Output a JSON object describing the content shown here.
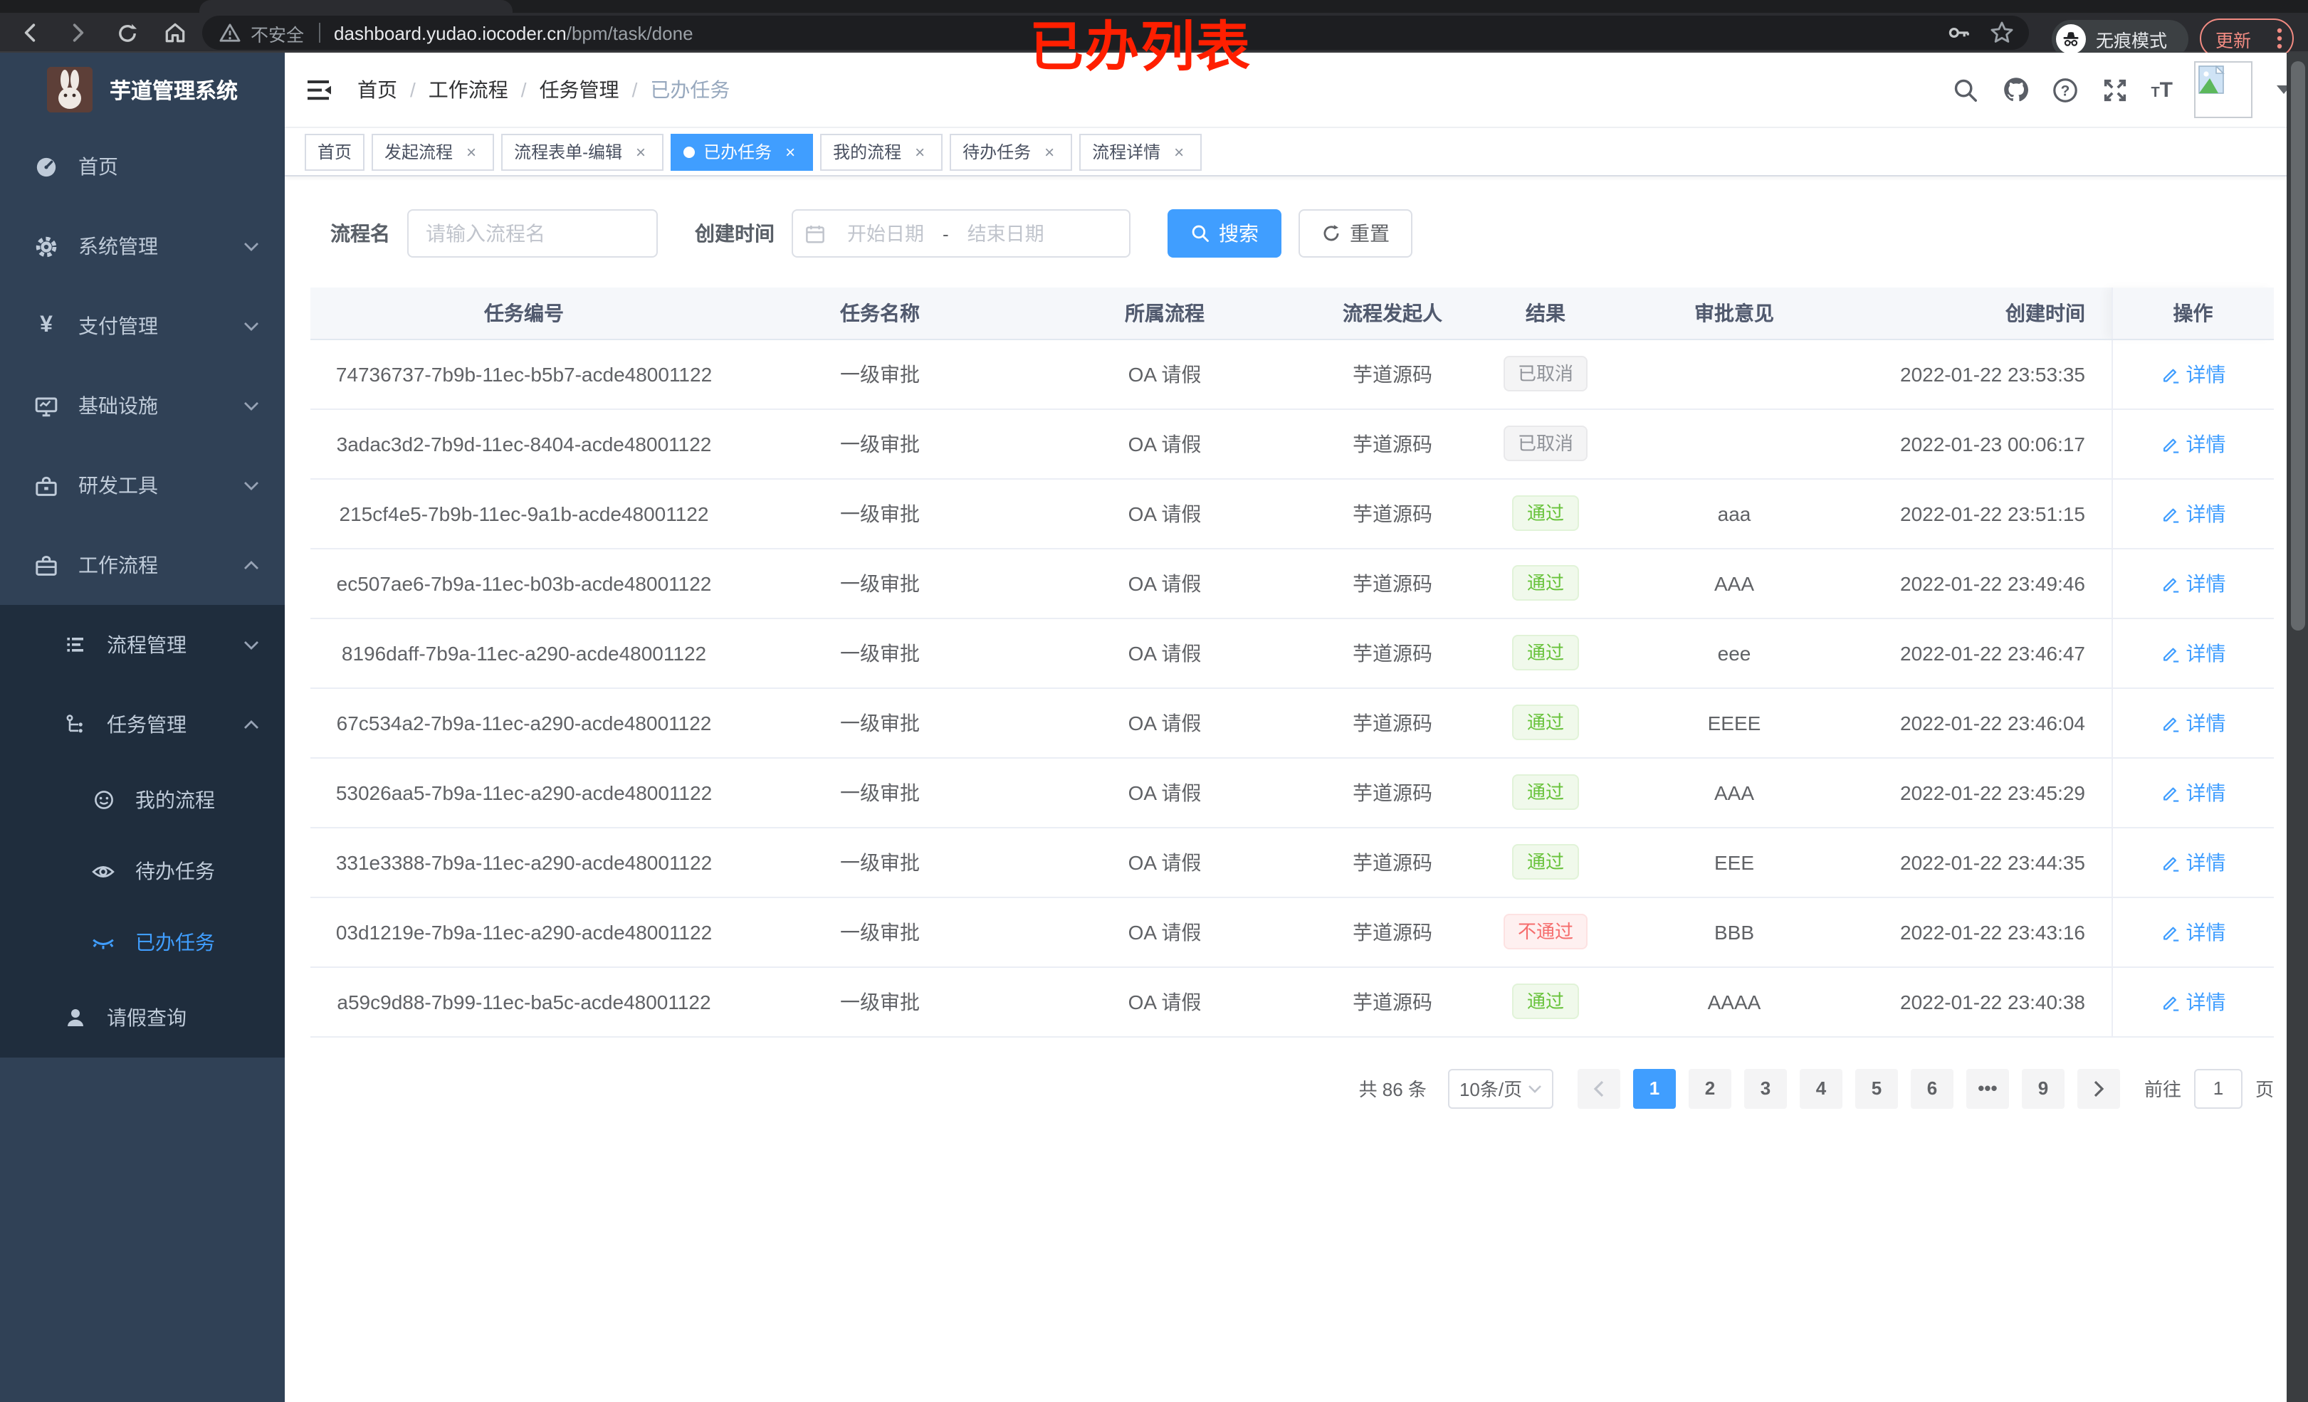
{
  "theme": {
    "accent": "#409eff",
    "sidebar_bg": "#304156",
    "submenu_bg": "#1f2d3d",
    "annotation_color": "#ff1f00"
  },
  "icons": {
    "close_glyph": "×",
    "ellipsis_glyph": "•••",
    "font_size_small": "T",
    "font_size_large": "T"
  },
  "browser": {
    "security_label": "不安全",
    "url_host": "dashboard.yudao.iocoder.cn",
    "url_path": "/bpm/task/done",
    "incognito_label": "无痕模式",
    "update_label": "更新"
  },
  "annotation": {
    "text": "已办列表"
  },
  "sidebar": {
    "title": "芋道管理系统",
    "items": [
      {
        "label": "首页"
      },
      {
        "label": "系统管理"
      },
      {
        "label": "支付管理"
      },
      {
        "label": "基础设施"
      },
      {
        "label": "研发工具"
      },
      {
        "label": "工作流程"
      }
    ],
    "sub_items": [
      {
        "label": "流程管理"
      },
      {
        "label": "任务管理"
      },
      {
        "label": "我的流程"
      },
      {
        "label": "待办任务"
      },
      {
        "label": "已办任务"
      },
      {
        "label": "请假查询"
      }
    ]
  },
  "navbar": {
    "breadcrumb": {
      "items": [
        "首页",
        "工作流程",
        "任务管理",
        "已办任务"
      ],
      "separator": "/"
    }
  },
  "tags": [
    {
      "label": "首页"
    },
    {
      "label": "发起流程"
    },
    {
      "label": "流程表单-编辑"
    },
    {
      "label": "已办任务"
    },
    {
      "label": "我的流程"
    },
    {
      "label": "待办任务"
    },
    {
      "label": "流程详情"
    }
  ],
  "filters": {
    "name_label": "流程名",
    "name_placeholder": "请输入流程名",
    "time_label": "创建时间",
    "start_placeholder": "开始日期",
    "range_separator": "-",
    "end_placeholder": "结束日期",
    "search_label": "搜索",
    "reset_label": "重置"
  },
  "table": {
    "columns": [
      "任务编号",
      "任务名称",
      "所属流程",
      "流程发起人",
      "结果",
      "审批意见",
      "创建时间",
      "操作"
    ],
    "action_label": "详情",
    "result_colors": {
      "success": "#67c23a",
      "info": "#909399",
      "danger": "#f56c6c"
    },
    "rows": [
      {
        "task_id": "74736737-7b9b-11ec-b5b7-acde48001122",
        "task_name": "一级审批",
        "process": "OA 请假",
        "starter": "芋道源码",
        "result": "已取消",
        "result_type": "info",
        "comment": "",
        "created": "2022-01-22 23:53:35"
      },
      {
        "task_id": "3adac3d2-7b9d-11ec-8404-acde48001122",
        "task_name": "一级审批",
        "process": "OA 请假",
        "starter": "芋道源码",
        "result": "已取消",
        "result_type": "info",
        "comment": "",
        "created": "2022-01-23 00:06:17"
      },
      {
        "task_id": "215cf4e5-7b9b-11ec-9a1b-acde48001122",
        "task_name": "一级审批",
        "process": "OA 请假",
        "starter": "芋道源码",
        "result": "通过",
        "result_type": "success",
        "comment": "aaa",
        "created": "2022-01-22 23:51:15"
      },
      {
        "task_id": "ec507ae6-7b9a-11ec-b03b-acde48001122",
        "task_name": "一级审批",
        "process": "OA 请假",
        "starter": "芋道源码",
        "result": "通过",
        "result_type": "success",
        "comment": "AAA",
        "created": "2022-01-22 23:49:46"
      },
      {
        "task_id": "8196daff-7b9a-11ec-a290-acde48001122",
        "task_name": "一级审批",
        "process": "OA 请假",
        "starter": "芋道源码",
        "result": "通过",
        "result_type": "success",
        "comment": "eee",
        "created": "2022-01-22 23:46:47"
      },
      {
        "task_id": "67c534a2-7b9a-11ec-a290-acde48001122",
        "task_name": "一级审批",
        "process": "OA 请假",
        "starter": "芋道源码",
        "result": "通过",
        "result_type": "success",
        "comment": "EEEE",
        "created": "2022-01-22 23:46:04"
      },
      {
        "task_id": "53026aa5-7b9a-11ec-a290-acde48001122",
        "task_name": "一级审批",
        "process": "OA 请假",
        "starter": "芋道源码",
        "result": "通过",
        "result_type": "success",
        "comment": "AAA",
        "created": "2022-01-22 23:45:29"
      },
      {
        "task_id": "331e3388-7b9a-11ec-a290-acde48001122",
        "task_name": "一级审批",
        "process": "OA 请假",
        "starter": "芋道源码",
        "result": "通过",
        "result_type": "success",
        "comment": "EEE",
        "created": "2022-01-22 23:44:35"
      },
      {
        "task_id": "03d1219e-7b9a-11ec-a290-acde48001122",
        "task_name": "一级审批",
        "process": "OA 请假",
        "starter": "芋道源码",
        "result": "不通过",
        "result_type": "danger",
        "comment": "BBB",
        "created": "2022-01-22 23:43:16"
      },
      {
        "task_id": "a59c9d88-7b99-11ec-ba5c-acde48001122",
        "task_name": "一级审批",
        "process": "OA 请假",
        "starter": "芋道源码",
        "result": "通过",
        "result_type": "success",
        "comment": "AAAA",
        "created": "2022-01-22 23:40:38"
      }
    ]
  },
  "pagination": {
    "total": "共 86 条",
    "page_size": "10条/页",
    "pages": [
      "1",
      "2",
      "3",
      "4",
      "5",
      "6",
      "•••",
      "9"
    ],
    "active_page": "1",
    "goto_label": "前往",
    "goto_value": "1",
    "unit_label": "页"
  }
}
